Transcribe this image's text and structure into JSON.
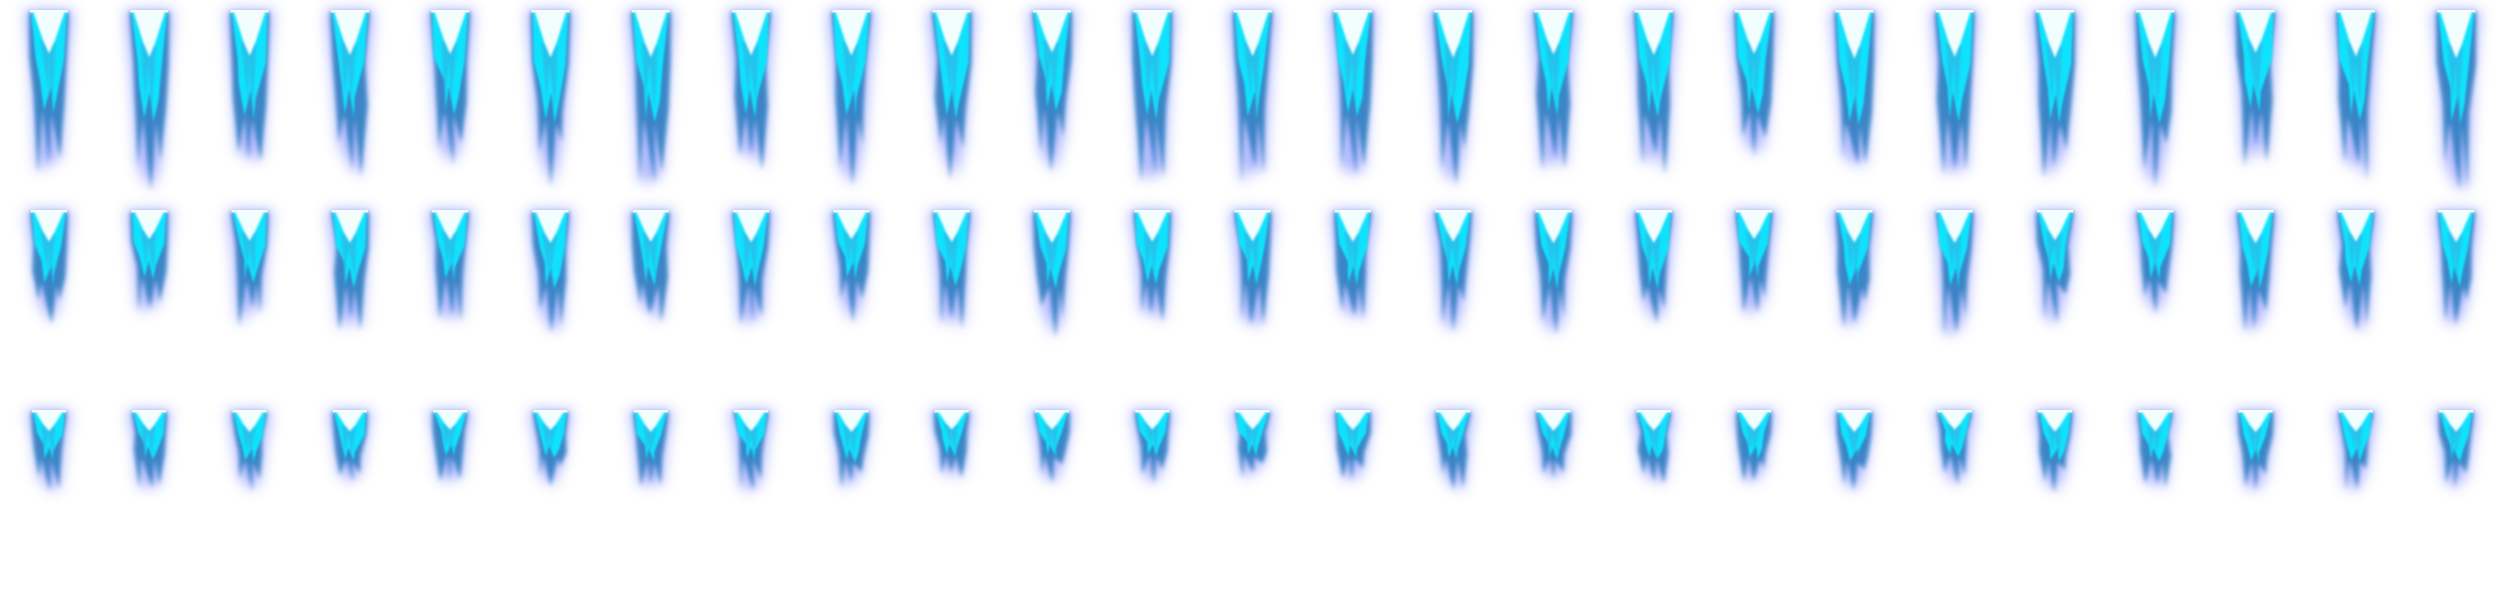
{
  "sprite_sheet": {
    "name": "flame-jet-sprite-sheet",
    "background": "#ffffff",
    "colors": {
      "cyan": "#10e8ff",
      "mid": "#2fb7e6",
      "deep": "#2e7fc0",
      "glow": "#6a78ff",
      "core": "#ffffff"
    },
    "columns": 25,
    "rows": [
      {
        "name": "long-flame",
        "frames": 25
      },
      {
        "name": "medium-flame",
        "frames": 25
      },
      {
        "name": "short-flame",
        "frames": 25
      }
    ]
  }
}
